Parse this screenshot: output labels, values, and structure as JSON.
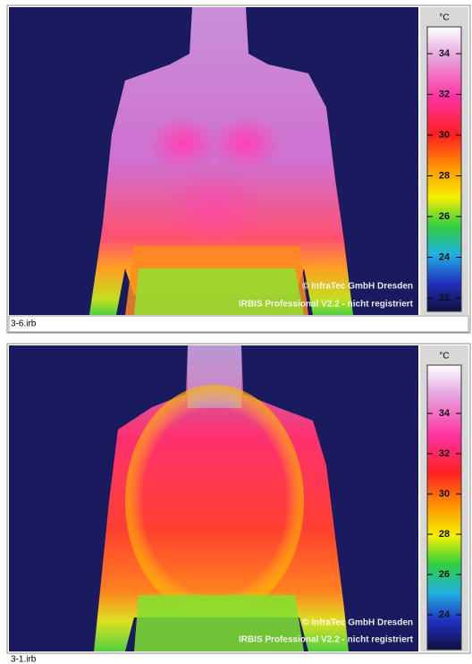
{
  "panels": [
    {
      "unit": "°C",
      "scale_ticks": [
        34,
        32,
        30,
        28,
        26,
        24,
        22
      ],
      "watermark": [
        "© InfraTec GmbH Dresden",
        "IRBIS Professional V2.2 - nicht registriert"
      ],
      "filename": "3-6.irb"
    },
    {
      "unit": "°C",
      "scale_ticks": [
        34,
        32,
        30,
        28,
        26,
        24
      ],
      "watermark": [
        "© InfraTec GmbH Dresden",
        "IRBIS Professional V2.2 - nicht registriert"
      ],
      "filename": "3-1.irb"
    }
  ]
}
